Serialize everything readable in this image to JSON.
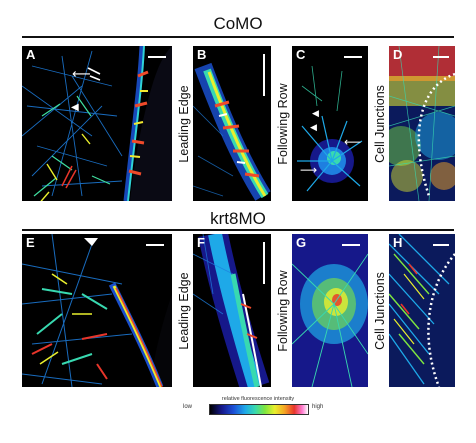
{
  "rows": [
    {
      "title": "CoMO",
      "panels": [
        {
          "letter": "A",
          "side_label": ""
        },
        {
          "letter": "B",
          "side_label": "Leading Edge"
        },
        {
          "letter": "C",
          "side_label": "Following Row"
        },
        {
          "letter": "D",
          "side_label": "Cell Junctions"
        }
      ]
    },
    {
      "title": "krt8MO",
      "panels": [
        {
          "letter": "E",
          "side_label": ""
        },
        {
          "letter": "F",
          "side_label": "Leading Edge"
        },
        {
          "letter": "G",
          "side_label": "Following Row"
        },
        {
          "letter": "H",
          "side_label": "Cell Junctions"
        }
      ]
    }
  ],
  "colorbar": {
    "title": "relative fluorescence intensity",
    "low_label": "low",
    "high_label": "high",
    "colors": [
      "#000000",
      "#16188a",
      "#1c4fd6",
      "#1ea9e8",
      "#38d9b0",
      "#7ee63f",
      "#e9ef2d",
      "#f5a623",
      "#e8352a",
      "#ff7ad0",
      "#ffffff"
    ]
  }
}
